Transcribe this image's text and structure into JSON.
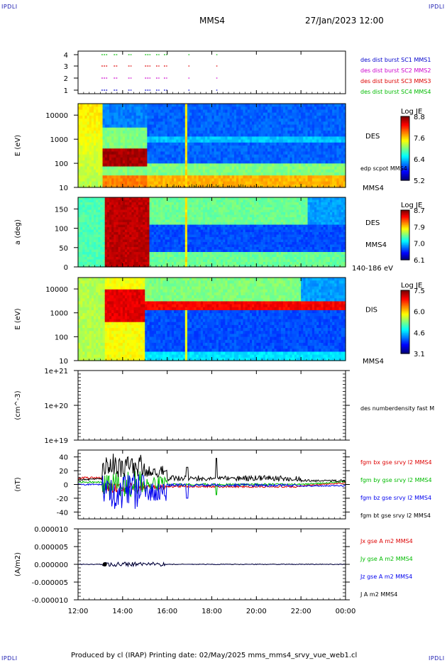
{
  "header": {
    "corner_left_top": "IPDLI",
    "corner_right_top": "IPDLI",
    "corner_left_bottom": "IPDLI",
    "corner_right_bottom": "IPDLI",
    "title": "MMS4",
    "date": "27/Jan/2023 12:00"
  },
  "footer": {
    "text": "Produced by cl (IRAP)   Printing date: 02/May/2025   mms_mms4_srvy_vue_web1.cl"
  },
  "time_axis": {
    "ticks": [
      "12:00",
      "14:00",
      "16:00",
      "18:00",
      "20:00",
      "22:00",
      "00:00"
    ],
    "start_hour": 12,
    "end_hour": 24
  },
  "colors": {
    "mms1": "#0000cc",
    "mms2": "#cc00cc",
    "mms3": "#dd0000",
    "mms4": "#00bb00",
    "bx": "#dd0000",
    "by": "#00bb00",
    "bz": "#0000ee",
    "bt": "#000000"
  },
  "chart_data": [
    {
      "type": "scatter",
      "title": "burst availability",
      "y_ticks": [
        "4",
        "3",
        "2",
        "1"
      ],
      "legend": [
        {
          "label": "des dist burst SC1 MMS1",
          "color": "#0000cc"
        },
        {
          "label": "des dist burst SC2 MMS2",
          "color": "#cc00cc"
        },
        {
          "label": "des dist burst SC3 MMS3",
          "color": "#dd0000"
        },
        {
          "label": "des dist burst SC4 MMS4",
          "color": "#00bb00"
        }
      ],
      "intervals_hours": [
        [
          13.05,
          13.35
        ],
        [
          13.6,
          13.8
        ],
        [
          14.25,
          14.4
        ],
        [
          15.0,
          15.25
        ],
        [
          15.5,
          15.65
        ],
        [
          15.85,
          16.0
        ],
        [
          16.95,
          17.0
        ],
        [
          18.2,
          18.25
        ]
      ]
    },
    {
      "type": "heatmap",
      "name": "DES energy spectrogram",
      "ylabel": "E (eV)",
      "y_ticks": [
        "10000",
        "1000",
        "100",
        "10"
      ],
      "y_log": true,
      "ylim": [
        10,
        30000
      ],
      "right_label": "DES",
      "extra_label": "edp scpot MMS4",
      "bottom_label": "MMS4",
      "colorbar": {
        "title": "Log JE",
        "ticks": [
          "8.8",
          "7.6",
          "6.4",
          "5.2"
        ],
        "range": [
          5.2,
          8.8
        ]
      }
    },
    {
      "type": "heatmap",
      "name": "DES pitch angle",
      "ylabel": "a (deg)",
      "y_ticks": [
        "150",
        "100",
        "50",
        "0"
      ],
      "ylim": [
        0,
        180
      ],
      "right_label": "DES",
      "extra_label": "MMS4",
      "bottom_label": "140-186 eV",
      "colorbar": {
        "title": "Log JE",
        "ticks": [
          "8.7",
          "7.9",
          "7.0",
          "6.1"
        ],
        "range": [
          6.1,
          8.7
        ]
      }
    },
    {
      "type": "heatmap",
      "name": "DIS energy spectrogram",
      "ylabel": "E (eV)",
      "y_ticks": [
        "10000",
        "1000",
        "100",
        "10"
      ],
      "y_log": true,
      "ylim": [
        10,
        30000
      ],
      "right_label": "DIS",
      "bottom_label": "MMS4",
      "colorbar": {
        "title": "Log JE",
        "ticks": [
          "7.5",
          "6.0",
          "4.6",
          "3.1"
        ],
        "range": [
          3.1,
          7.5
        ]
      }
    },
    {
      "type": "line",
      "name": "number density",
      "ylabel": "(cm^-3)",
      "y_ticks": [
        "1e+21",
        "1e+20",
        "1e+19"
      ],
      "y_log": true,
      "ylim": [
        1e+19,
        1e+21
      ],
      "legend": [
        {
          "label": "des numberdensity fast M",
          "color": "#000000"
        }
      ],
      "series": []
    },
    {
      "type": "line",
      "name": "magnetic field",
      "ylabel": "(nT)",
      "y_ticks": [
        "40",
        "20",
        "0",
        "-20",
        "-40"
      ],
      "ylim": [
        -50,
        50
      ],
      "legend": [
        {
          "label": "fgm bx gse srvy l2 MMS4",
          "color": "#dd0000"
        },
        {
          "label": "fgm by gse srvy l2 MMS4",
          "color": "#00bb00"
        },
        {
          "label": "fgm bz gse srvy l2 MMS4",
          "color": "#0000ee"
        },
        {
          "label": "fgm bt gse srvy l2 MMS4",
          "color": "#000000"
        }
      ]
    },
    {
      "type": "line",
      "name": "current density",
      "ylabel": "(A/m2)",
      "y_ticks": [
        "0.000010",
        "0.000005",
        "0.000000",
        "-0.000005",
        "-0.000010"
      ],
      "ylim": [
        -1e-05,
        1e-05
      ],
      "legend": [
        {
          "label": "Jx gse A m2 MMS4",
          "color": "#dd0000"
        },
        {
          "label": "Jy gse A m2 MMS4",
          "color": "#00bb00"
        },
        {
          "label": "Jz gse A m2 MMS4",
          "color": "#0000ee"
        },
        {
          "label": "J A m2 MMS4",
          "color": "#000000"
        }
      ]
    }
  ]
}
